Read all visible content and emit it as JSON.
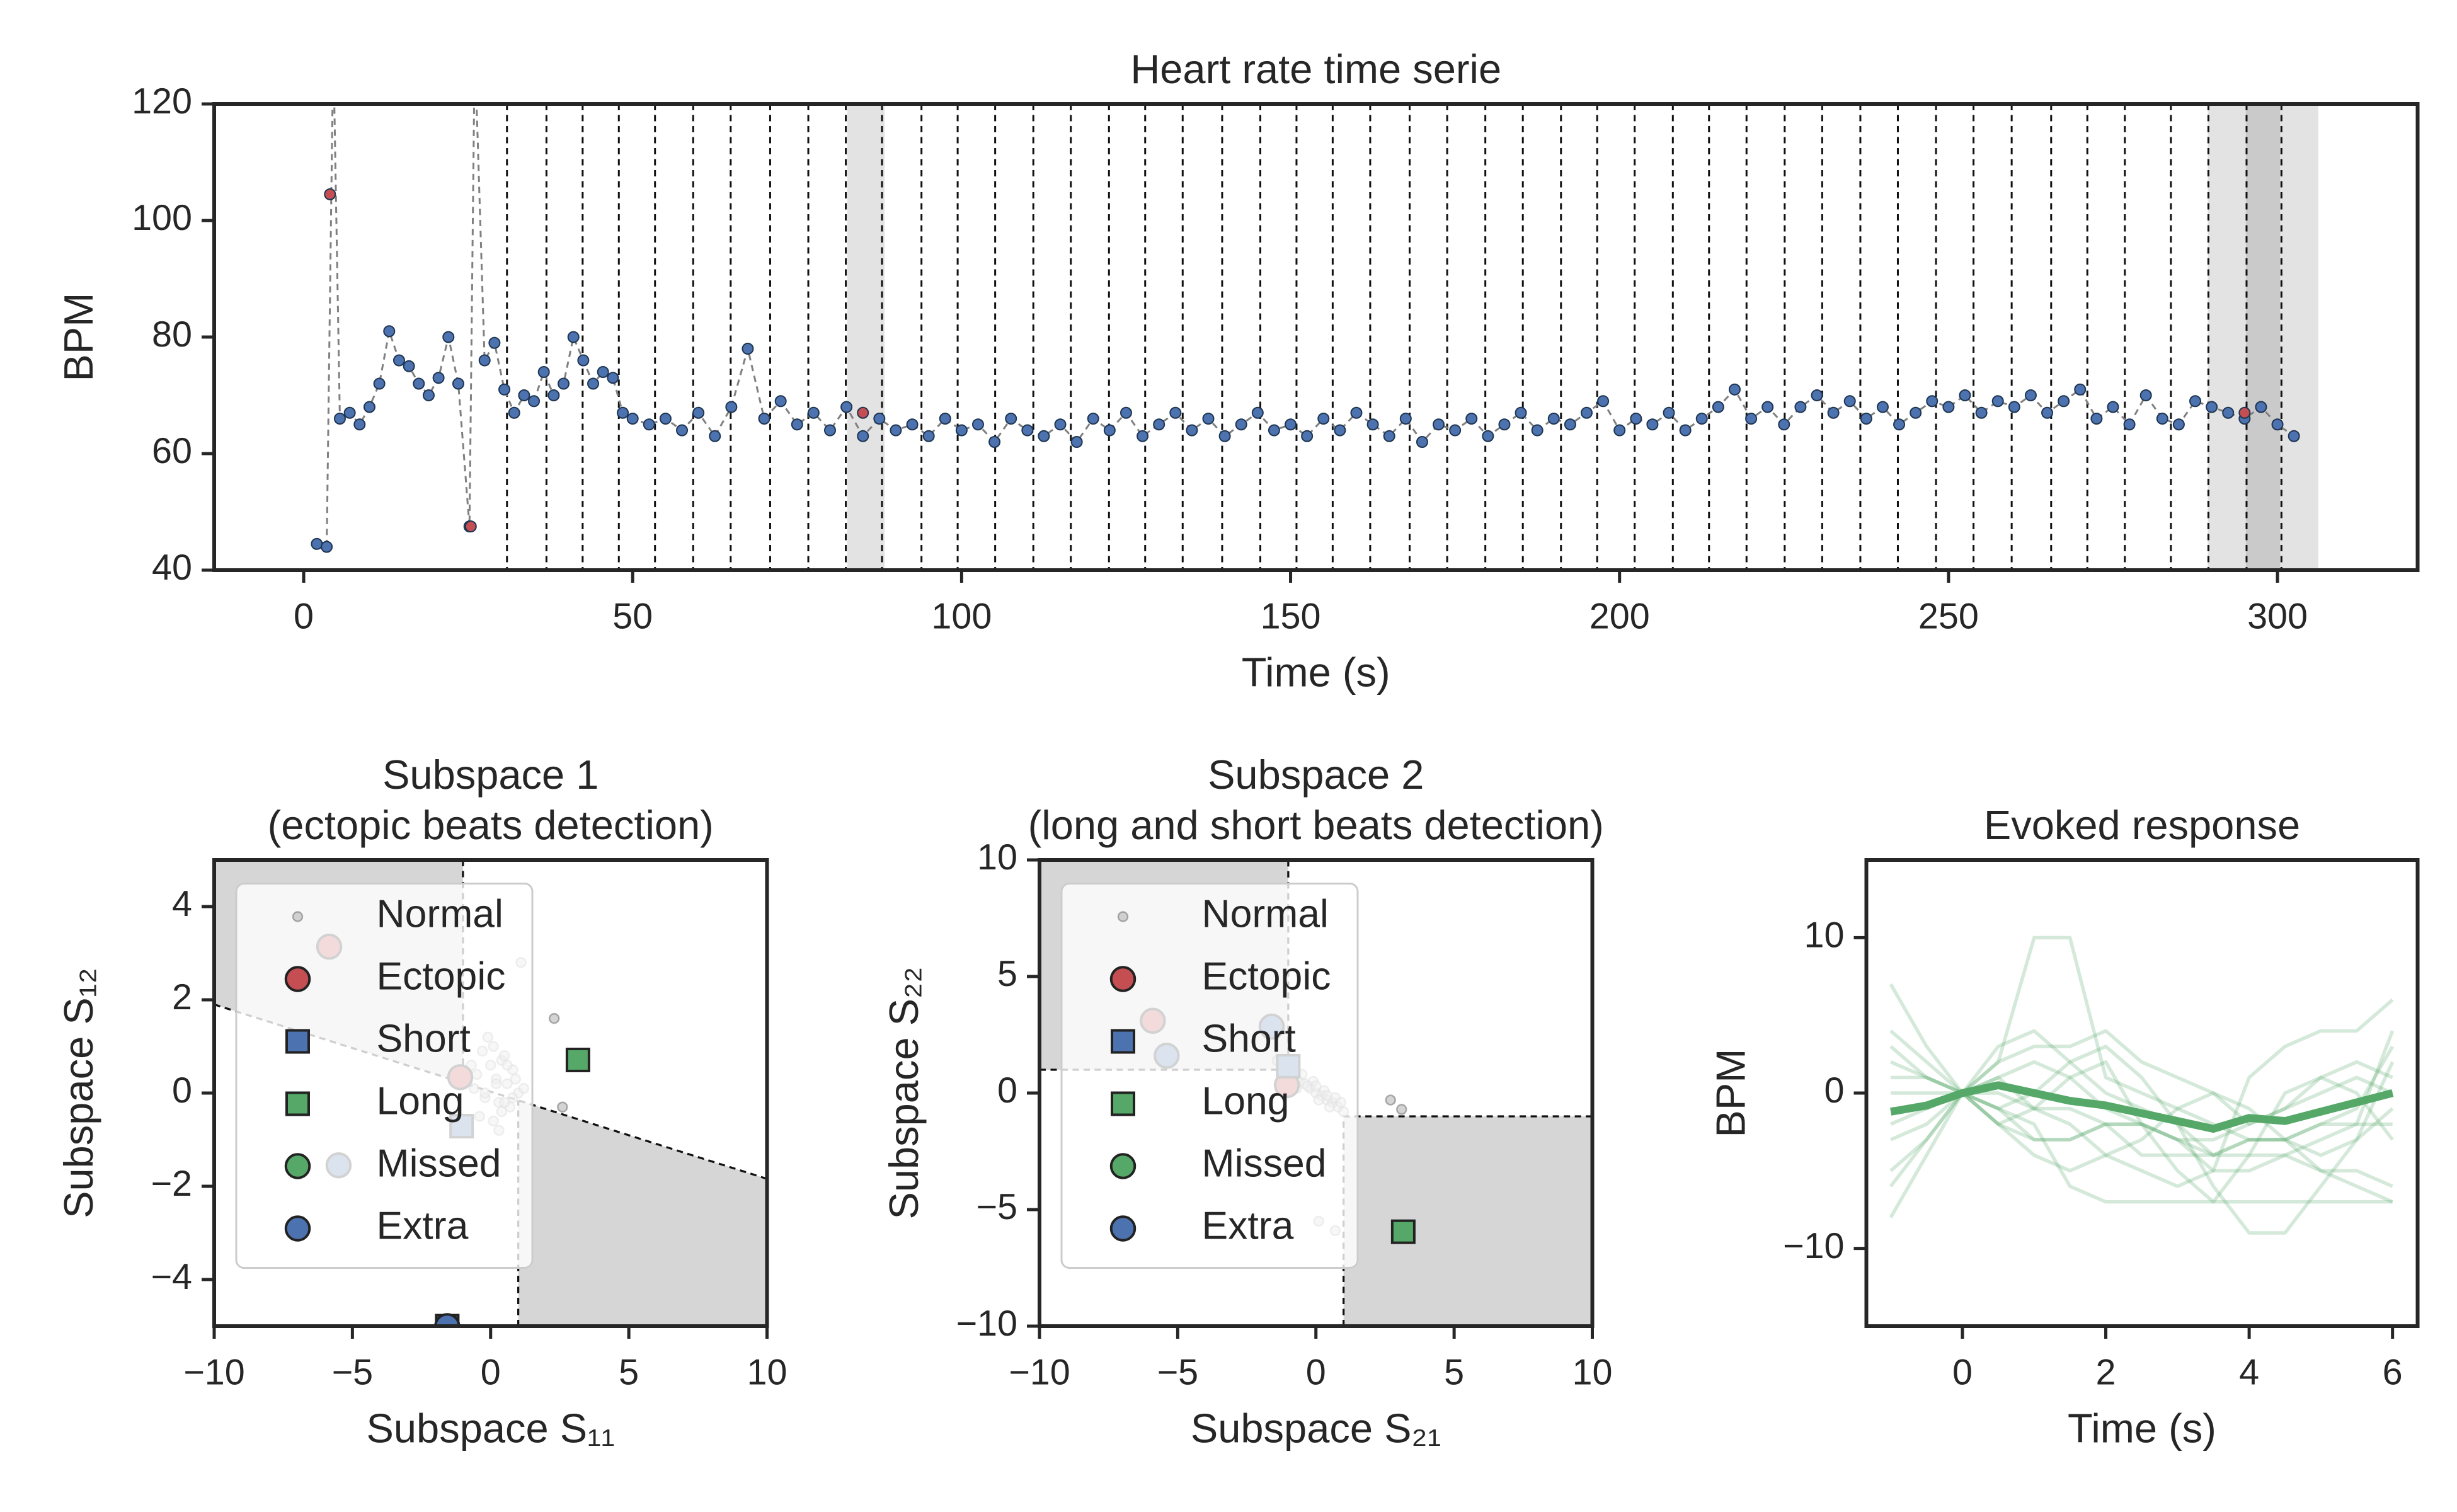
{
  "chart_data": [
    {
      "type": "line",
      "title": "Heart rate time serie",
      "x_label": "Time (s)",
      "y_label": "BPM",
      "xlim": [
        -13.6,
        321.3
      ],
      "xticks": [
        0,
        50,
        100,
        150,
        200,
        250,
        300
      ],
      "ylim": [
        40,
        120
      ],
      "yticks": [
        40,
        60,
        80,
        100,
        120
      ],
      "shaded_spans": [
        [
          82.6,
          88.3
        ],
        [
          289.4,
          300.4
        ],
        [
          295.2,
          306.2
        ]
      ],
      "events": [
        30.9,
        36.9,
        42.4,
        47.9,
        53.4,
        59.2,
        64.9,
        70.9,
        76.7,
        82.4,
        87.9,
        93.9,
        99.4,
        105.1,
        110.9,
        116.6,
        122.4,
        127.9,
        133.6,
        139.6,
        145.4,
        150.9,
        156.4,
        162.1,
        168.1,
        173.8,
        179.6,
        185.3,
        191.1,
        196.6,
        202.3,
        208.1,
        213.6,
        219.3,
        225.1,
        230.8,
        236.6,
        242.3,
        248.1,
        253.8,
        259.6,
        265.6,
        271.1,
        276.8,
        283.8,
        289.5,
        295.3,
        300.6
      ],
      "series": [
        {
          "color": "#4c72b0",
          "line_color": "#808080",
          "line_style": "dashed",
          "markers": true,
          "x": [
            2,
            3.5,
            4.5,
            5.5,
            7,
            8.5,
            10,
            11.5,
            13,
            14.5,
            16,
            17.5,
            19,
            20.5,
            22,
            23.5,
            25.2,
            26,
            27.5,
            29,
            30.5,
            32,
            33.5,
            35,
            36.5,
            38,
            39.5,
            41,
            42.5,
            44,
            45.5,
            47,
            48.5,
            50,
            52.5,
            55,
            57.5,
            60,
            62.5,
            65,
            67.5,
            70,
            72.5,
            75,
            77.5,
            80,
            82.5,
            85,
            87.5,
            90,
            92.5,
            95,
            97.5,
            100,
            102.5,
            105,
            107.5,
            110,
            112.5,
            115,
            117.5,
            120,
            122.5,
            125,
            127.5,
            130,
            132.5,
            135,
            137.5,
            140,
            142.5,
            145,
            147.5,
            150,
            152.5,
            155,
            157.5,
            160,
            162.5,
            165,
            167.5,
            170,
            172.5,
            175,
            177.5,
            180,
            182.5,
            185,
            187.5,
            190,
            192.5,
            195,
            197.5,
            200,
            202.5,
            205,
            207.5,
            210,
            212.5,
            215,
            217.5,
            220,
            222.5,
            225,
            227.5,
            230,
            232.5,
            235,
            237.5,
            240,
            242.5,
            245,
            247.5,
            250,
            252.5,
            255,
            257.5,
            260,
            262.5,
            265,
            267.5,
            270,
            272.5,
            275,
            277.5,
            280,
            282.5,
            285,
            287.5,
            290,
            292.5,
            295,
            297.5,
            300,
            302.5
          ],
          "values": [
            44.5,
            44,
            130,
            66,
            67,
            65,
            68,
            72,
            81,
            76,
            75,
            72,
            70,
            73,
            80,
            72,
            47.5,
            130,
            76,
            79,
            71,
            67,
            70,
            69,
            74,
            70,
            72,
            80,
            76,
            72,
            74,
            73,
            67,
            66,
            65,
            66,
            64,
            67,
            63,
            68,
            78,
            66,
            69,
            65,
            67,
            64,
            68,
            63,
            66,
            64,
            65,
            63,
            66,
            64,
            65,
            62,
            66,
            64,
            63,
            65,
            62,
            66,
            64,
            67,
            63,
            65,
            67,
            64,
            66,
            63,
            65,
            67,
            64,
            65,
            63,
            66,
            64,
            67,
            65,
            63,
            66,
            62,
            65,
            64,
            66,
            63,
            65,
            67,
            64,
            66,
            65,
            67,
            69,
            64,
            66,
            65,
            67,
            64,
            66,
            68,
            71,
            66,
            68,
            65,
            68,
            70,
            67,
            69,
            66,
            68,
            65,
            67,
            69,
            68,
            70,
            67,
            69,
            68,
            70,
            67,
            69,
            71,
            66,
            68,
            65,
            70,
            66,
            65,
            69,
            68,
            67,
            66,
            68,
            65,
            63
          ]
        },
        {
          "color": "#c44e52",
          "markers": true,
          "line": false,
          "x": [
            4,
            25.4,
            85,
            295
          ],
          "values": [
            104.5,
            47.5,
            67,
            67
          ]
        }
      ]
    },
    {
      "type": "scatter",
      "title": [
        "Subspace 1",
        "(ectopic beats detection)"
      ],
      "x_label": "Subspace S₁₁",
      "y_label": "Subspace S₁₂",
      "xlim": [
        -10,
        10
      ],
      "xticks": [
        {
          "value": -10,
          "label": "−10"
        },
        {
          "value": -5,
          "label": "−5"
        },
        0,
        5,
        10
      ],
      "ylim": [
        -5,
        5
      ],
      "yticks": [
        {
          "value": -4,
          "label": "−4"
        },
        {
          "value": -2,
          "label": "−2"
        },
        0,
        2,
        4
      ],
      "legend": "upper left",
      "regions": [
        [
          [
            -10,
            5
          ],
          [
            -1,
            5
          ],
          [
            -1,
            0.22
          ],
          [
            -10,
            1.9
          ]
        ],
        [
          [
            1,
            -5
          ],
          [
            10,
            -5
          ],
          [
            10,
            -1.84
          ],
          [
            1,
            -0.157
          ]
        ]
      ],
      "boundaries": [
        [
          [
            -10,
            1.9
          ],
          [
            10,
            -1.84
          ]
        ],
        [
          [
            -1,
            5
          ],
          [
            -1,
            0.22
          ]
        ],
        [
          [
            1,
            -5
          ],
          [
            1,
            -0.157
          ]
        ]
      ],
      "series": [
        {
          "name": "Normal",
          "color": "#aaaaaa",
          "marker": "dot",
          "x": [
            -0.3,
            0.1,
            0.4,
            0.8,
            -0.5,
            0.2,
            0.6,
            1.0,
            -0.2,
            0.3,
            0.7,
            -0.6,
            0.0,
            0.5,
            0.9,
            1.2,
            -0.4,
            0.1,
            0.4,
            0.8,
            -0.1,
            0.3,
            0.6,
            -0.7,
            0.2,
            1.1,
            2.3,
            2.6,
            0.5,
            -0.2
          ],
          "values": [
            0.9,
            1.0,
            0.7,
            0.5,
            0.4,
            0.3,
            0.2,
            0.0,
            -0.1,
            -0.2,
            -0.3,
            0.1,
            0.6,
            0.8,
            0.3,
            0.1,
            -0.5,
            -0.6,
            -0.4,
            -0.1,
            1.2,
            -0.8,
            0.6,
            0.6,
            0.2,
            2.8,
            1.6,
            -0.3,
            -0.2,
            0.0
          ]
        },
        {
          "name": "Ectopic",
          "color": "#c44e52",
          "marker": "o",
          "x": [
            -5.84,
            -1.1
          ],
          "values": [
            3.14,
            0.34
          ]
        },
        {
          "name": "Short",
          "color": "#4c72b0",
          "marker": "s",
          "x": [
            -1.05,
            -1.57
          ],
          "values": [
            -0.71,
            -5.0
          ]
        },
        {
          "name": "Long",
          "color": "#55a868",
          "marker": "s",
          "x": [
            3.16
          ],
          "values": [
            0.71
          ]
        },
        {
          "name": "Missed",
          "color": "#55a868",
          "marker": "o",
          "x": [],
          "values": []
        },
        {
          "name": "Extra",
          "color": "#4c72b0",
          "marker": "o",
          "x": [
            -5.5,
            -1.57
          ],
          "values": [
            -1.55,
            -5.0
          ]
        }
      ]
    },
    {
      "type": "scatter",
      "title": [
        "Subspace 2",
        "(long and short beats detection)"
      ],
      "x_label": "Subspace S₂₁",
      "y_label": "Subspace S₂₂",
      "xlim": [
        -10,
        10
      ],
      "xticks": [
        {
          "value": -10,
          "label": "−10"
        },
        {
          "value": -5,
          "label": "−5"
        },
        0,
        5,
        10
      ],
      "ylim": [
        -10,
        10
      ],
      "yticks": [
        {
          "value": -10,
          "label": "−10"
        },
        {
          "value": -5,
          "label": "−5"
        },
        0,
        5,
        10
      ],
      "legend": "upper left",
      "regions": [
        [
          [
            -10,
            10
          ],
          [
            -1,
            10
          ],
          [
            -1,
            1
          ],
          [
            -10,
            1
          ]
        ],
        [
          [
            1,
            -1
          ],
          [
            10,
            -1
          ],
          [
            10,
            -10
          ],
          [
            1,
            -10
          ]
        ]
      ],
      "boundaries": [
        [
          [
            -10,
            1
          ],
          [
            -1,
            1
          ],
          [
            -1,
            10
          ]
        ],
        [
          [
            1,
            -10
          ],
          [
            1,
            -1
          ],
          [
            10,
            -1
          ]
        ]
      ],
      "series": [
        {
          "name": "Normal",
          "color": "#aaaaaa",
          "marker": "dot",
          "x": [
            -1.4,
            -1.2,
            -1.0,
            -0.8,
            -0.6,
            -0.4,
            -0.2,
            0.0,
            0.2,
            0.4,
            0.6,
            0.8,
            1.0,
            -0.9,
            -0.5,
            -0.1,
            0.3,
            0.7,
            -0.3,
            0.1,
            0.5,
            2.7,
            3.1,
            0.1,
            0.7,
            -1.1,
            -0.7,
            0.0,
            0.4,
            0.9
          ],
          "values": [
            1.4,
            1.1,
            0.9,
            0.7,
            0.5,
            0.4,
            0.2,
            0.0,
            -0.1,
            -0.3,
            -0.4,
            -0.6,
            -0.8,
            1.2,
            0.8,
            0.5,
            0.1,
            -0.2,
            0.3,
            -0.3,
            -0.6,
            -0.3,
            -0.7,
            -5.5,
            -5.9,
            0.6,
            0.2,
            0.3,
            -0.1,
            -0.4
          ]
        },
        {
          "name": "Ectopic",
          "color": "#c44e52",
          "marker": "o",
          "x": [
            -5.9,
            -1.05
          ],
          "values": [
            3.1,
            0.34
          ]
        },
        {
          "name": "Short",
          "color": "#4c72b0",
          "marker": "s",
          "x": [
            -1.0
          ],
          "values": [
            1.15
          ]
        },
        {
          "name": "Long",
          "color": "#55a868",
          "marker": "s",
          "x": [
            3.16
          ],
          "values": [
            -5.95
          ]
        },
        {
          "name": "Missed",
          "color": "#55a868",
          "marker": "o",
          "x": [],
          "values": []
        },
        {
          "name": "Extra",
          "color": "#4c72b0",
          "marker": "o",
          "x": [
            -5.4,
            -1.6
          ],
          "values": [
            1.6,
            2.85
          ]
        }
      ]
    },
    {
      "type": "line",
      "title": "Evoked response",
      "x_label": "Time (s)",
      "y_label": "BPM",
      "xlim": [
        -1.34,
        6.35
      ],
      "xticks": [
        0,
        2,
        4,
        6
      ],
      "ylim": [
        -15,
        15
      ],
      "yticks": [
        {
          "value": -10,
          "label": "−10"
        },
        0,
        10
      ],
      "color": "#55a868",
      "opacity": 0.25,
      "line_width": 2.2,
      "x": [
        -1,
        -0.5,
        0,
        0.5,
        1,
        1.5,
        2,
        2.5,
        3,
        3.5,
        4,
        4.5,
        5,
        5.5,
        6
      ],
      "series": [
        {
          "values": [
            7,
            3,
            0,
            -2,
            -3,
            -3,
            -2,
            -4,
            -4,
            -4,
            -3,
            -3,
            -5,
            -5,
            -6
          ]
        },
        {
          "values": [
            -8,
            -4,
            0,
            2,
            10,
            10,
            1,
            0,
            -1,
            -2,
            -3,
            -3,
            -2,
            -2,
            -2
          ]
        },
        {
          "values": [
            3,
            1,
            0,
            -1,
            -2,
            -6,
            -7,
            -7,
            -7,
            -7,
            -7,
            -7,
            -7,
            -7,
            -7
          ]
        },
        {
          "values": [
            -3,
            -2,
            0,
            3,
            4,
            2,
            0,
            -1,
            -2,
            -6,
            -9,
            -9,
            -6,
            -3,
            2
          ]
        },
        {
          "values": [
            1,
            1,
            0,
            -1,
            -3,
            -3,
            -2,
            -2,
            -3,
            -5,
            -5,
            -4,
            -3,
            -2,
            4
          ]
        },
        {
          "values": [
            -5,
            -3,
            0,
            1,
            -1,
            -2,
            -4,
            -5,
            -6,
            -5,
            1,
            3,
            4,
            4,
            6
          ]
        },
        {
          "values": [
            4,
            2,
            0,
            -2,
            -4,
            -5,
            -4,
            -3,
            -1,
            0,
            -1,
            -3,
            -4,
            -3,
            -1
          ]
        },
        {
          "values": [
            -2,
            -1,
            0,
            1,
            2,
            1,
            -1,
            -2,
            -3,
            -3,
            -2,
            -1,
            0,
            1,
            0
          ]
        },
        {
          "values": [
            0,
            0,
            0,
            -1,
            0,
            2,
            3,
            1,
            -2,
            -4,
            -3,
            -3,
            -2,
            -1,
            3
          ]
        },
        {
          "values": [
            2,
            1,
            0,
            -2,
            -1,
            1,
            2,
            -2,
            -5,
            -7,
            -4,
            0,
            1,
            0,
            -3
          ]
        },
        {
          "values": [
            -1,
            -1,
            0,
            2,
            3,
            3,
            4,
            2,
            1,
            0,
            -2,
            -1,
            1,
            2,
            1
          ]
        },
        {
          "values": [
            -6,
            -3,
            0,
            0,
            -1,
            -1,
            -2,
            -2,
            -3,
            -4,
            -4,
            -4,
            -5,
            -6,
            -7
          ]
        },
        {
          "values": [
            -1.2,
            -0.8,
            0,
            0.5,
            0,
            -0.5,
            -0.8,
            -1.3,
            -1.8,
            -2.3,
            -1.6,
            -1.8,
            -1.2,
            -0.6,
            0
          ],
          "opacity": 1,
          "line_width": 5
        }
      ]
    }
  ]
}
